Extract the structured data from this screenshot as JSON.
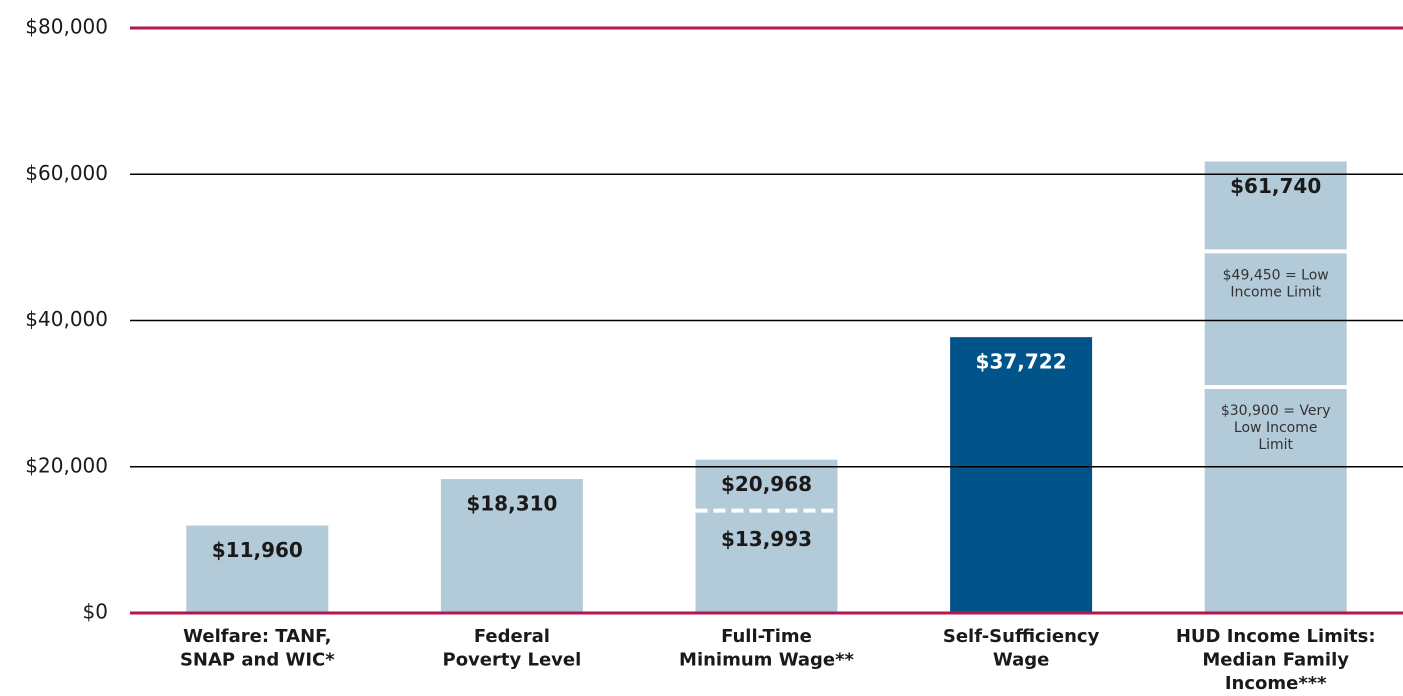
{
  "chart_data": {
    "type": "bar",
    "categories": [
      [
        "Welfare: TANF,",
        "SNAP and WIC*"
      ],
      [
        "Federal",
        "Poverty Level"
      ],
      [
        "Full-Time",
        "Minimum Wage**"
      ],
      [
        "Self-Sufficiency",
        "Wage"
      ],
      [
        "HUD Income Limits:",
        "Median Family",
        "Income***"
      ]
    ],
    "values": [
      11960,
      18310,
      20968,
      37722,
      61740
    ],
    "value_labels": [
      "$11,960",
      "$18,310",
      "$20,968",
      "$37,722",
      "$61,740"
    ],
    "colors": [
      "#b3cad8",
      "#b3cad8",
      "#b3cad8",
      "#00548a",
      "#b3cad8"
    ],
    "label_colors": [
      "#1a1a1a",
      "#1a1a1a",
      "#1a1a1a",
      "#ffffff",
      "#1a1a1a"
    ],
    "thresholds": [
      [],
      [],
      [
        {
          "value": 13993,
          "label": [
            "$13,993"
          ],
          "style": "dashed",
          "bold": true
        }
      ],
      [],
      [
        {
          "value": 49450,
          "label": [
            "$49,450 = Low",
            "Income Limit"
          ],
          "style": "solid",
          "bold": false
        },
        {
          "value": 30900,
          "label": [
            "$30,900 = Very",
            "Low Income",
            "Limit"
          ],
          "style": "solid",
          "bold": false
        }
      ]
    ],
    "ylim": [
      0,
      80000
    ],
    "yticks": [
      {
        "value": 0,
        "label": "$0"
      },
      {
        "value": 20000,
        "label": "$20,000"
      },
      {
        "value": 40000,
        "label": "$40,000"
      },
      {
        "value": 60000,
        "label": "$60,000"
      },
      {
        "value": 80000,
        "label": "$80,000"
      }
    ],
    "grid": true,
    "grid_color": "#000000",
    "edge_color": "#b5164b"
  }
}
